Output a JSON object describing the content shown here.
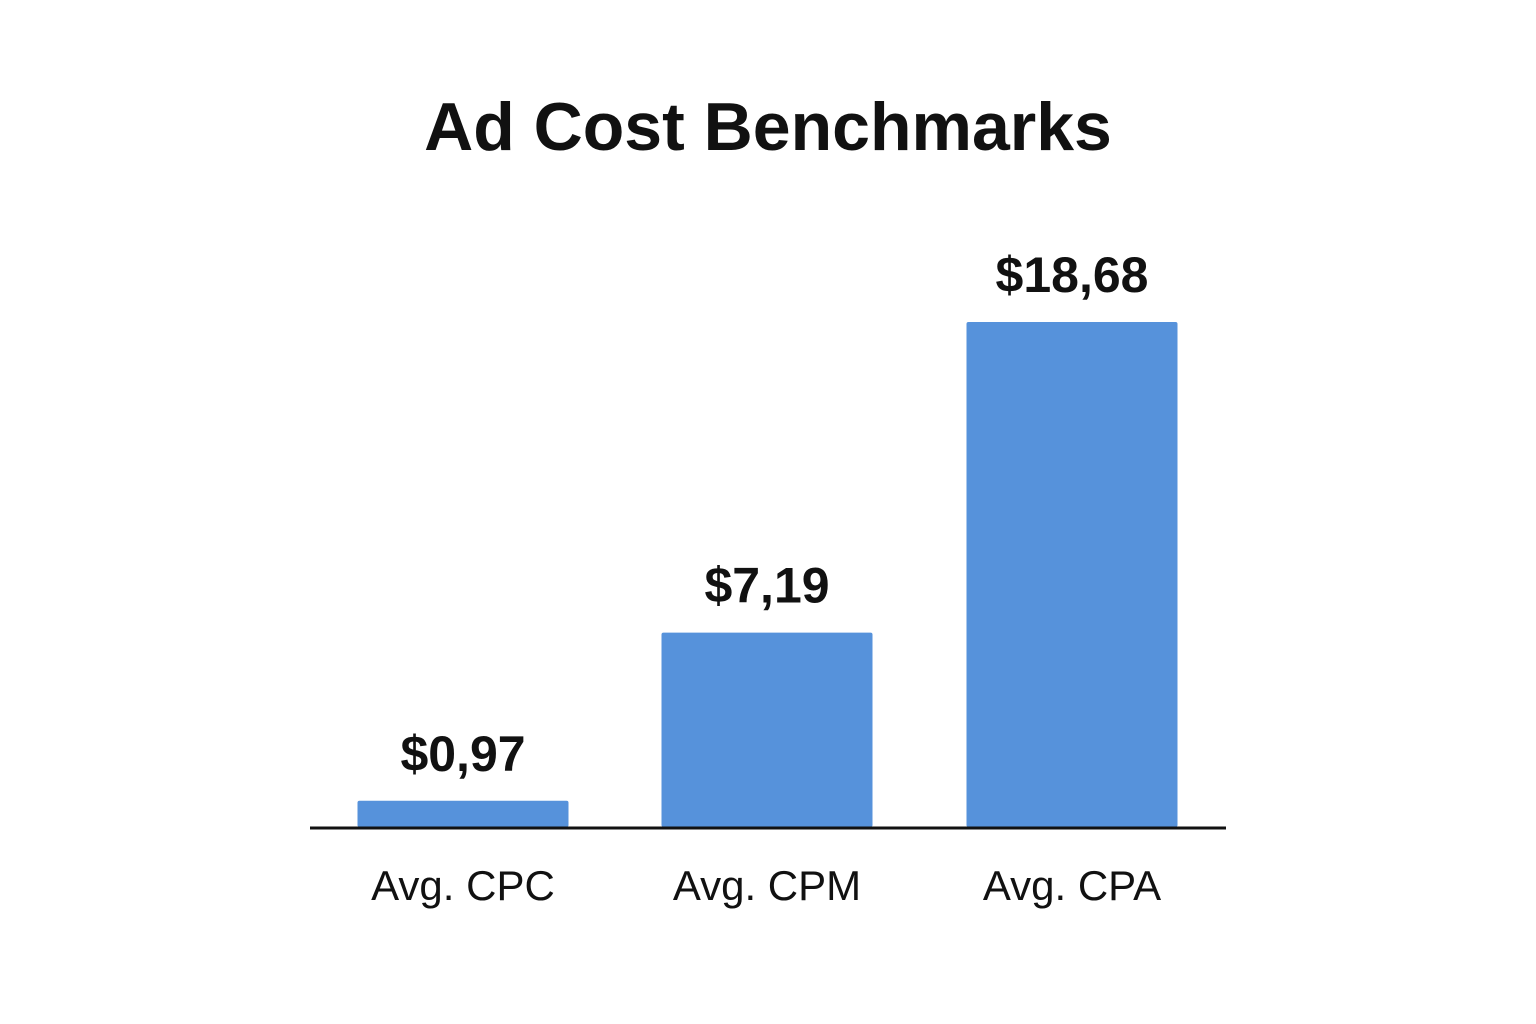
{
  "chart_data": {
    "type": "bar",
    "title": "Ad Cost Benchmarks",
    "categories": [
      "Avg. CPC",
      "Avg. CPM",
      "Avg. CPA"
    ],
    "values": [
      0.97,
      7.19,
      18.68
    ],
    "value_labels": [
      "$0,97",
      "$7,19",
      "$18,68"
    ],
    "ylim": [
      0,
      18.68
    ],
    "grid": false,
    "legend": "none",
    "bar_color": "#5692DB",
    "axis_color": "#111111"
  }
}
